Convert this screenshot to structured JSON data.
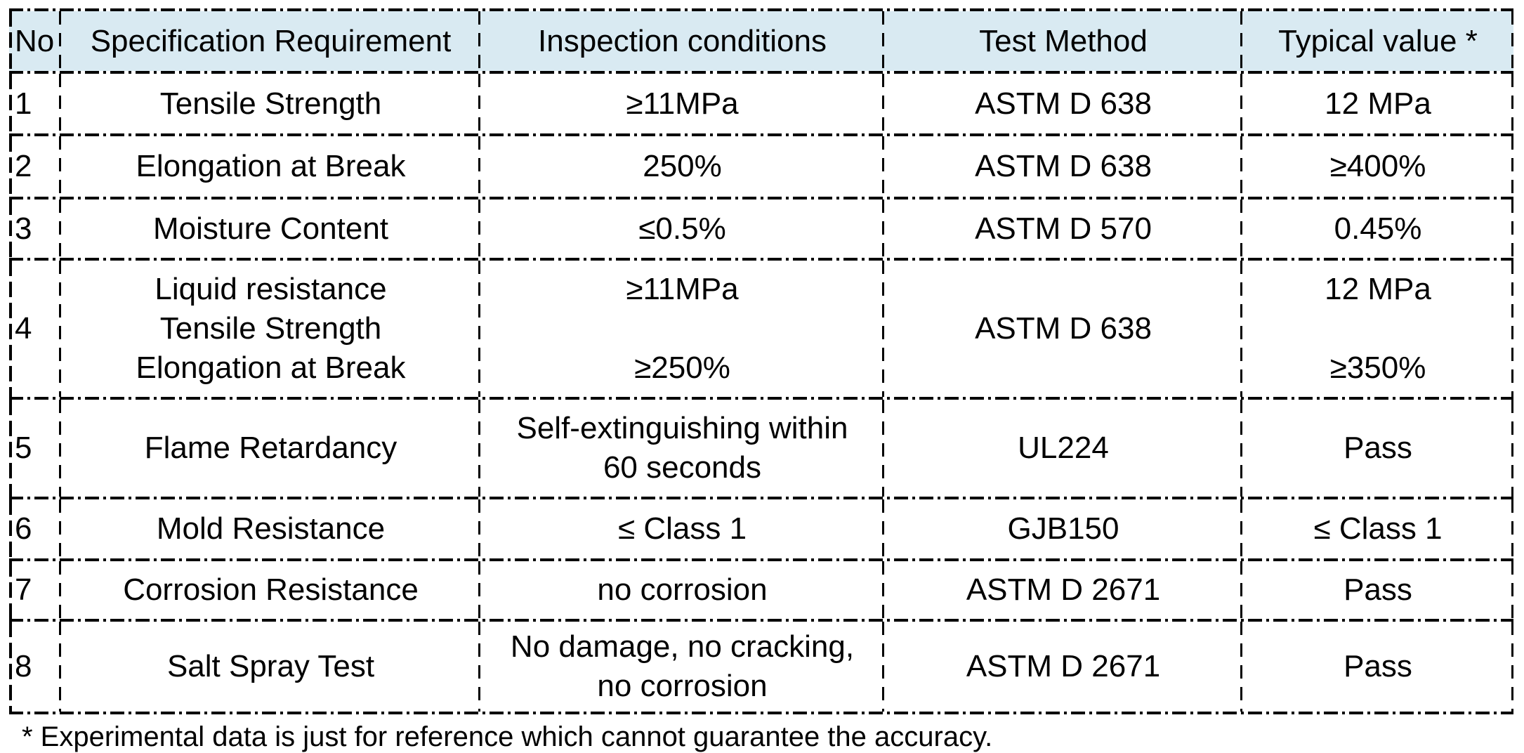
{
  "table": {
    "header": {
      "no": "No",
      "spec": "Specification Requirement",
      "inspection": "Inspection conditions",
      "method": "Test Method",
      "typical": "Typical value *"
    },
    "rows": [
      {
        "no": "1",
        "spec": "Tensile Strength",
        "inspection": "≥11MPa",
        "method": "ASTM D 638",
        "typical": "12 MPa"
      },
      {
        "no": "2",
        "spec": "Elongation at Break",
        "inspection": "250%",
        "method": "ASTM D 638",
        "typical": "≥400%"
      },
      {
        "no": "3",
        "spec": "Moisture Content",
        "inspection": "≤0.5%",
        "method": "ASTM D 570",
        "typical": "0.45%"
      },
      {
        "no": "4",
        "spec": "Liquid resistance\nTensile Strength\nElongation at Break",
        "inspection": "≥11MPa\n\n≥250%",
        "method": "ASTM D 638",
        "typical": "12 MPa\n\n≥350%"
      },
      {
        "no": "5",
        "spec": "Flame Retardancy",
        "inspection": "Self-extinguishing within\n60 seconds",
        "method": "UL224",
        "typical": "Pass"
      },
      {
        "no": "6",
        "spec": "Mold Resistance",
        "inspection": "≤ Class 1",
        "method": "GJB150",
        "typical": "≤ Class 1"
      },
      {
        "no": "7",
        "spec": "Corrosion Resistance",
        "inspection": "no corrosion",
        "method": "ASTM D 2671",
        "typical": "Pass"
      },
      {
        "no": "8",
        "spec": "Salt Spray Test",
        "inspection": "No damage, no cracking,\nno corrosion",
        "method": "ASTM D 2671",
        "typical": "Pass"
      }
    ],
    "footnote": "* Experimental data is just for reference which cannot guarantee the accuracy.",
    "colors": {
      "header_bg": "#d9eaf2",
      "border": "#000000",
      "text": "#000000",
      "page_bg": "#ffffff"
    }
  }
}
